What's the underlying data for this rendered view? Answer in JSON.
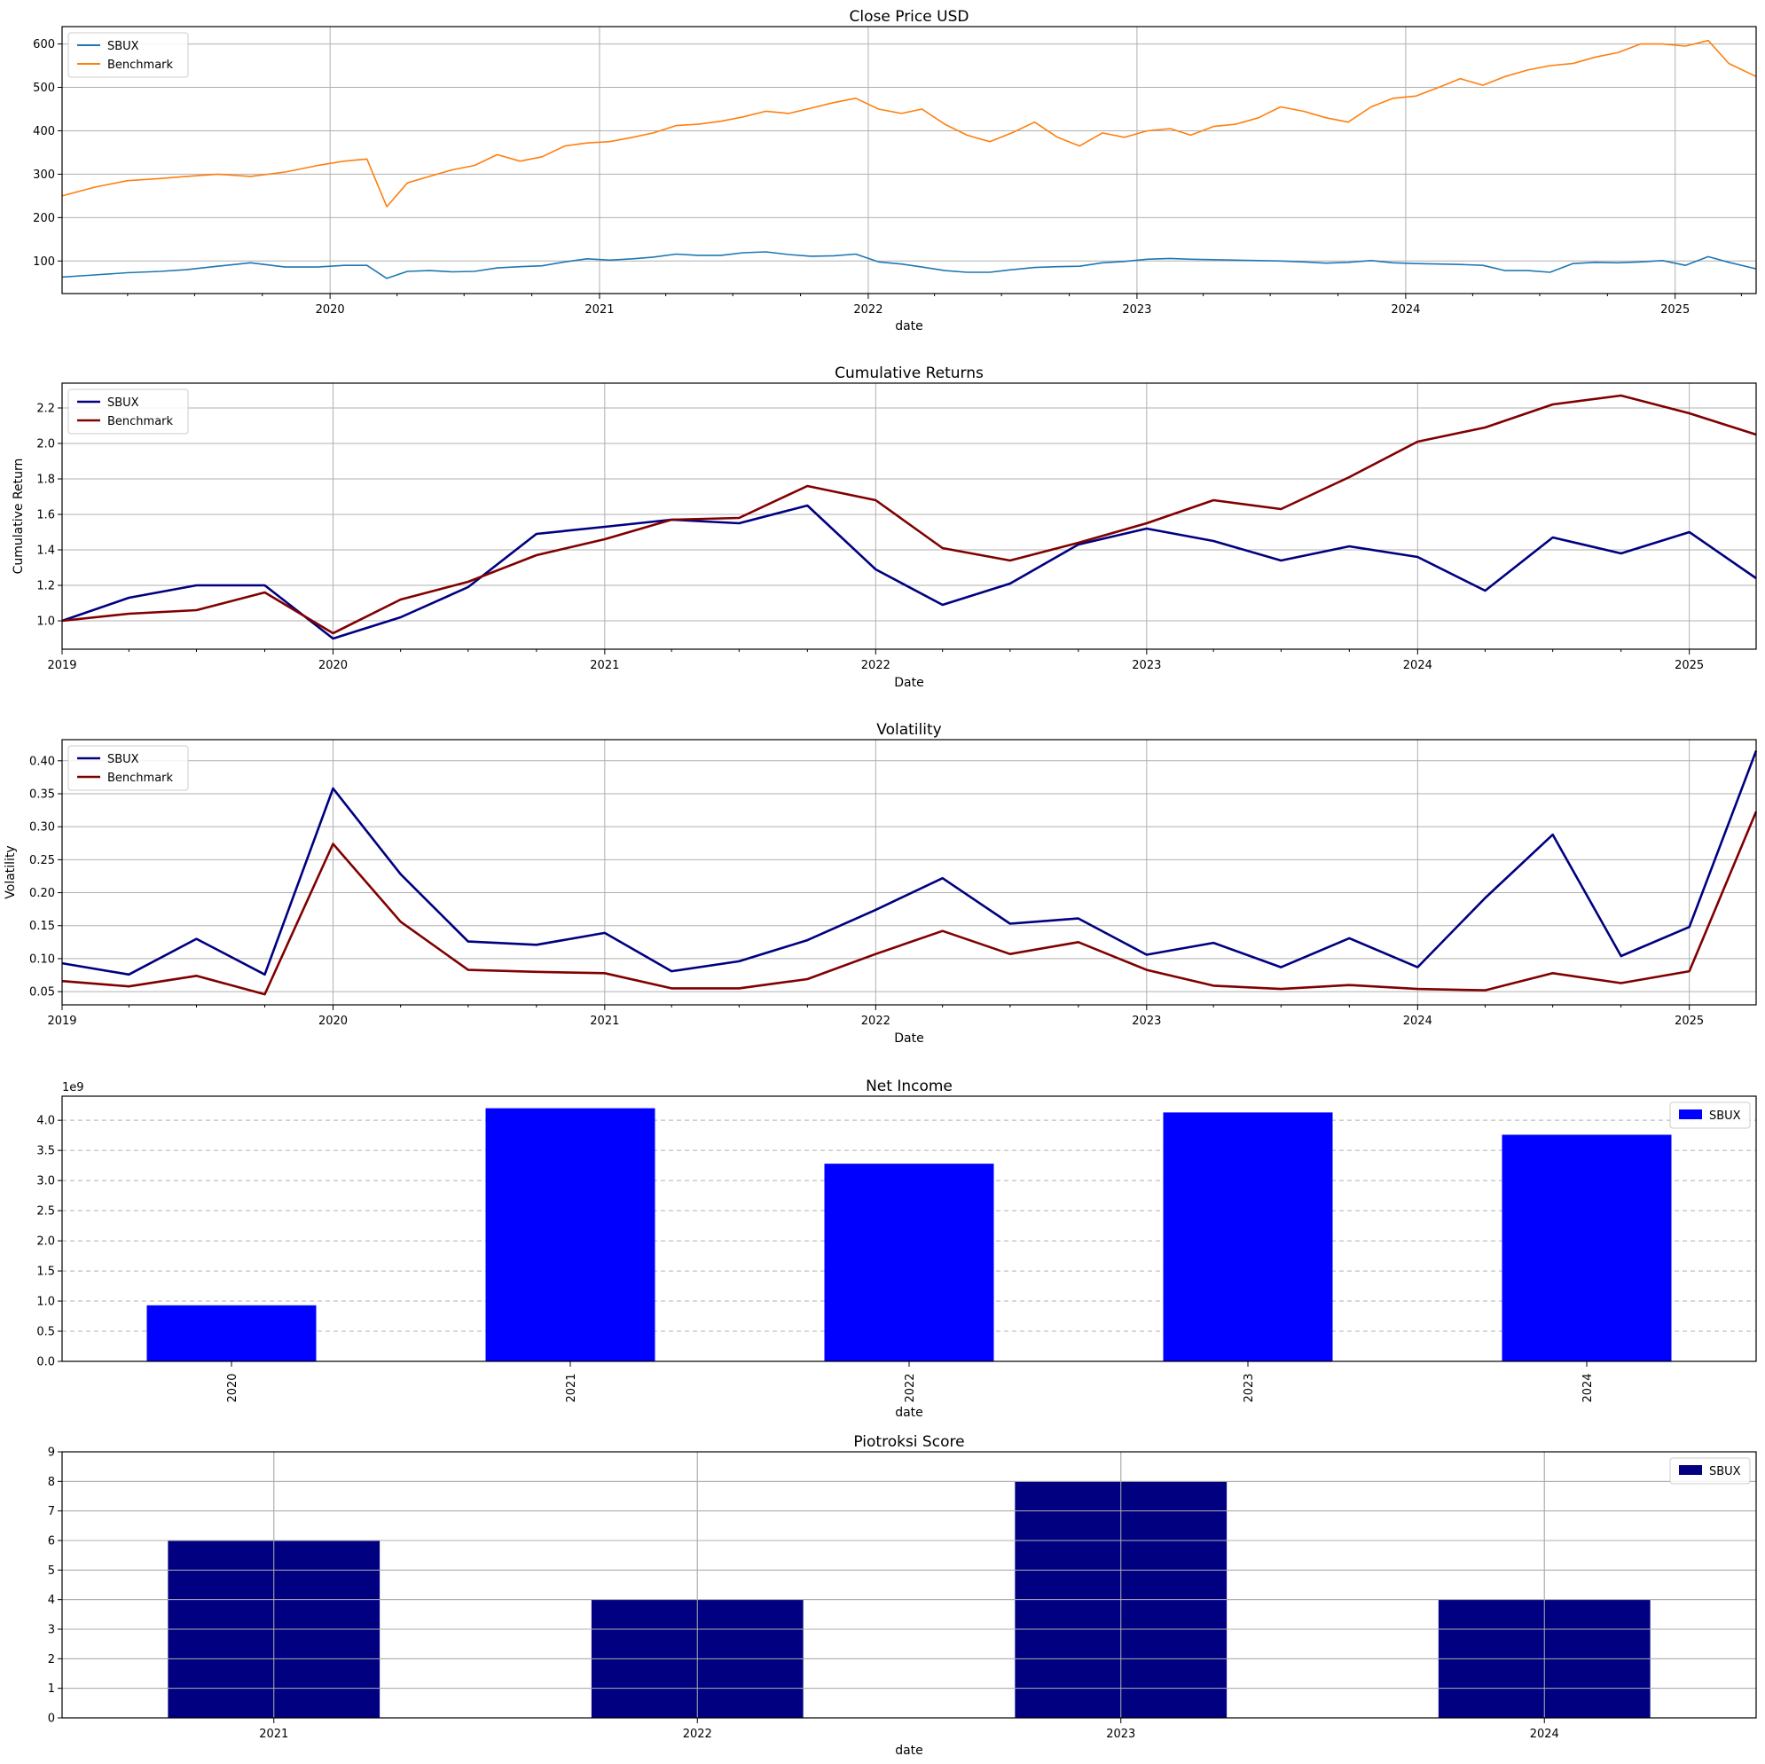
{
  "chart_data": [
    {
      "type": "line",
      "title": "Close Price USD",
      "xlabel": "date",
      "ylabel": "",
      "xlim": [
        "2019-01-02",
        "2025-04-21"
      ],
      "ylim": [
        25,
        640
      ],
      "xticks": [
        "2020",
        "2021",
        "2022",
        "2023",
        "2024",
        "2025"
      ],
      "yticks": [
        "100",
        "200",
        "300",
        "400",
        "500",
        "600"
      ],
      "grid": "both",
      "legend": "top-left",
      "series": [
        {
          "name": "SBUX",
          "color": "#1f77b4",
          "x": [
            "2019-01-02",
            "2019-02-15",
            "2019-04-01",
            "2019-05-15",
            "2019-06-20",
            "2019-08-01",
            "2019-09-15",
            "2019-11-01",
            "2019-12-15",
            "2020-01-20",
            "2020-02-20",
            "2020-03-18",
            "2020-04-15",
            "2020-05-15",
            "2020-06-15",
            "2020-07-15",
            "2020-08-15",
            "2020-09-15",
            "2020-10-15",
            "2020-11-15",
            "2020-12-15",
            "2021-01-15",
            "2021-02-15",
            "2021-03-15",
            "2021-04-15",
            "2021-05-15",
            "2021-06-15",
            "2021-07-15",
            "2021-08-15",
            "2021-09-15",
            "2021-10-15",
            "2021-11-15",
            "2021-12-15",
            "2022-01-15",
            "2022-02-15",
            "2022-03-15",
            "2022-04-15",
            "2022-05-15",
            "2022-06-15",
            "2022-07-15",
            "2022-08-15",
            "2022-09-15",
            "2022-10-15",
            "2022-11-15",
            "2022-12-15",
            "2023-01-15",
            "2023-02-15",
            "2023-03-15",
            "2023-04-15",
            "2023-05-15",
            "2023-06-15",
            "2023-07-15",
            "2023-08-15",
            "2023-09-15",
            "2023-10-15",
            "2023-11-15",
            "2023-12-15",
            "2024-01-15",
            "2024-02-15",
            "2024-03-15",
            "2024-04-15",
            "2024-05-15",
            "2024-06-15",
            "2024-07-15",
            "2024-08-15",
            "2024-09-15",
            "2024-10-15",
            "2024-11-15",
            "2024-12-15",
            "2025-01-15",
            "2025-02-15",
            "2025-03-15",
            "2025-04-21"
          ],
          "y": [
            63,
            68,
            73,
            76,
            80,
            88,
            96,
            86,
            86,
            90,
            90,
            60,
            76,
            78,
            75,
            76,
            84,
            87,
            89,
            98,
            105,
            102,
            105,
            109,
            116,
            113,
            113,
            119,
            121,
            115,
            111,
            112,
            116,
            98,
            93,
            86,
            78,
            74,
            74,
            80,
            85,
            87,
            88,
            96,
            99,
            104,
            106,
            104,
            103,
            102,
            101,
            100,
            98,
            95,
            97,
            101,
            96,
            94,
            93,
            92,
            90,
            78,
            78,
            74,
            94,
            97,
            96,
            98,
            101,
            90,
            110,
            97,
            82
          ]
        },
        {
          "name": "Benchmark",
          "color": "#ff7f0e",
          "x": [
            "2019-01-02",
            "2019-02-15",
            "2019-04-01",
            "2019-05-15",
            "2019-06-20",
            "2019-08-01",
            "2019-09-15",
            "2019-11-01",
            "2019-12-15",
            "2020-01-20",
            "2020-02-20",
            "2020-03-18",
            "2020-04-15",
            "2020-05-15",
            "2020-06-15",
            "2020-07-15",
            "2020-08-15",
            "2020-09-15",
            "2020-10-15",
            "2020-11-15",
            "2020-12-15",
            "2021-01-15",
            "2021-02-15",
            "2021-03-15",
            "2021-04-15",
            "2021-05-15",
            "2021-06-15",
            "2021-07-15",
            "2021-08-15",
            "2021-09-15",
            "2021-10-15",
            "2021-11-15",
            "2021-12-15",
            "2022-01-15",
            "2022-02-15",
            "2022-03-15",
            "2022-04-15",
            "2022-05-15",
            "2022-06-15",
            "2022-07-15",
            "2022-08-15",
            "2022-09-15",
            "2022-10-15",
            "2022-11-15",
            "2022-12-15",
            "2023-01-15",
            "2023-02-15",
            "2023-03-15",
            "2023-04-15",
            "2023-05-15",
            "2023-06-15",
            "2023-07-15",
            "2023-08-15",
            "2023-09-15",
            "2023-10-15",
            "2023-11-15",
            "2023-12-15",
            "2024-01-15",
            "2024-02-15",
            "2024-03-15",
            "2024-04-15",
            "2024-05-15",
            "2024-06-15",
            "2024-07-15",
            "2024-08-15",
            "2024-09-15",
            "2024-10-15",
            "2024-11-15",
            "2024-12-15",
            "2025-01-15",
            "2025-02-15",
            "2025-03-15",
            "2025-04-21"
          ],
          "y": [
            250,
            270,
            285,
            290,
            295,
            300,
            295,
            305,
            320,
            330,
            335,
            225,
            280,
            295,
            310,
            320,
            345,
            330,
            340,
            365,
            372,
            375,
            385,
            395,
            412,
            415,
            422,
            432,
            445,
            440,
            452,
            465,
            475,
            450,
            440,
            450,
            415,
            390,
            375,
            395,
            420,
            385,
            365,
            395,
            385,
            400,
            405,
            390,
            410,
            415,
            430,
            455,
            445,
            430,
            420,
            455,
            475,
            480,
            500,
            520,
            505,
            525,
            540,
            550,
            555,
            570,
            580,
            600,
            600,
            595,
            608,
            555,
            525
          ]
        }
      ]
    },
    {
      "type": "line",
      "title": "Cumulative Returns",
      "xlabel": "Date",
      "ylabel": "Cumulative Return",
      "xlim": [
        "2019-01-01",
        "2025-04-01"
      ],
      "ylim": [
        0.84,
        2.34
      ],
      "xticks": [
        "2019",
        "2020",
        "2021",
        "2022",
        "2023",
        "2024",
        "2025"
      ],
      "yticks": [
        "1.0",
        "1.2",
        "1.4",
        "1.6",
        "1.8",
        "2.0",
        "2.2"
      ],
      "grid": "both",
      "legend": "top-left",
      "series": [
        {
          "name": "SBUX",
          "color": "#000080",
          "x": [
            "2019-01-01",
            "2019-04-01",
            "2019-07-01",
            "2019-10-01",
            "2020-01-01",
            "2020-04-01",
            "2020-07-01",
            "2020-10-01",
            "2021-01-01",
            "2021-04-01",
            "2021-07-01",
            "2021-10-01",
            "2022-01-01",
            "2022-04-01",
            "2022-07-01",
            "2022-10-01",
            "2023-01-01",
            "2023-04-01",
            "2023-07-01",
            "2023-10-01",
            "2024-01-01",
            "2024-04-01",
            "2024-07-01",
            "2024-10-01",
            "2025-01-01",
            "2025-04-01"
          ],
          "y": [
            1.0,
            1.13,
            1.2,
            1.2,
            0.9,
            1.02,
            1.19,
            1.49,
            1.53,
            1.57,
            1.55,
            1.65,
            1.29,
            1.09,
            1.21,
            1.43,
            1.52,
            1.45,
            1.34,
            1.42,
            1.36,
            1.17,
            1.47,
            1.38,
            1.5,
            1.24
          ]
        },
        {
          "name": "Benchmark",
          "color": "#800000",
          "x": [
            "2019-01-01",
            "2019-04-01",
            "2019-07-01",
            "2019-10-01",
            "2020-01-01",
            "2020-04-01",
            "2020-07-01",
            "2020-10-01",
            "2021-01-01",
            "2021-04-01",
            "2021-07-01",
            "2021-10-01",
            "2022-01-01",
            "2022-04-01",
            "2022-07-01",
            "2022-10-01",
            "2023-01-01",
            "2023-04-01",
            "2023-07-01",
            "2023-10-01",
            "2024-01-01",
            "2024-04-01",
            "2024-07-01",
            "2024-10-01",
            "2025-01-01",
            "2025-04-01"
          ],
          "y": [
            1.0,
            1.04,
            1.06,
            1.16,
            0.93,
            1.12,
            1.22,
            1.37,
            1.46,
            1.57,
            1.58,
            1.76,
            1.68,
            1.41,
            1.34,
            1.44,
            1.55,
            1.68,
            1.63,
            1.81,
            2.01,
            2.09,
            2.22,
            2.27,
            2.17,
            2.05
          ]
        }
      ]
    },
    {
      "type": "line",
      "title": "Volatility",
      "xlabel": "Date",
      "ylabel": "Volatility",
      "xlim": [
        "2019-01-01",
        "2025-04-01"
      ],
      "ylim": [
        0.03,
        0.432
      ],
      "xticks": [
        "2019",
        "2020",
        "2021",
        "2022",
        "2023",
        "2024",
        "2025"
      ],
      "yticks": [
        "0.05",
        "0.10",
        "0.15",
        "0.20",
        "0.25",
        "0.30",
        "0.35",
        "0.40"
      ],
      "grid": "both",
      "legend": "top-left",
      "series": [
        {
          "name": "SBUX",
          "color": "#000080",
          "x": [
            "2019-01-01",
            "2019-04-01",
            "2019-07-01",
            "2019-10-01",
            "2020-01-01",
            "2020-04-01",
            "2020-07-01",
            "2020-10-01",
            "2021-01-01",
            "2021-04-01",
            "2021-07-01",
            "2021-10-01",
            "2022-01-01",
            "2022-04-01",
            "2022-07-01",
            "2022-10-01",
            "2023-01-01",
            "2023-04-01",
            "2023-07-01",
            "2023-10-01",
            "2024-01-01",
            "2024-04-01",
            "2024-07-01",
            "2024-10-01",
            "2025-01-01",
            "2025-04-01"
          ],
          "y": [
            0.093,
            0.076,
            0.13,
            0.076,
            0.358,
            0.228,
            0.126,
            0.121,
            0.139,
            0.081,
            0.096,
            0.128,
            0.174,
            0.222,
            0.153,
            0.161,
            0.106,
            0.124,
            0.087,
            0.131,
            0.087,
            0.192,
            0.288,
            0.104,
            0.148,
            0.415
          ]
        },
        {
          "name": "Benchmark",
          "color": "#800000",
          "x": [
            "2019-01-01",
            "2019-04-01",
            "2019-07-01",
            "2019-10-01",
            "2020-01-01",
            "2020-04-01",
            "2020-07-01",
            "2020-10-01",
            "2021-01-01",
            "2021-04-01",
            "2021-07-01",
            "2021-10-01",
            "2022-01-01",
            "2022-04-01",
            "2022-07-01",
            "2022-10-01",
            "2023-01-01",
            "2023-04-01",
            "2023-07-01",
            "2023-10-01",
            "2024-01-01",
            "2024-04-01",
            "2024-07-01",
            "2024-10-01",
            "2025-01-01",
            "2025-04-01"
          ],
          "y": [
            0.066,
            0.058,
            0.074,
            0.046,
            0.274,
            0.156,
            0.083,
            0.08,
            0.078,
            0.055,
            0.055,
            0.069,
            0.107,
            0.142,
            0.107,
            0.125,
            0.083,
            0.059,
            0.054,
            0.06,
            0.054,
            0.052,
            0.078,
            0.063,
            0.081,
            0.323
          ]
        }
      ]
    },
    {
      "type": "bar",
      "title": "Net Income",
      "xlabel": "date",
      "ylabel": "",
      "offset_label": "1e9",
      "categories": [
        "2020",
        "2021",
        "2022",
        "2023",
        "2024"
      ],
      "ylim": [
        0,
        4.4
      ],
      "yticks": [
        "0.0",
        "0.5",
        "1.0",
        "1.5",
        "2.0",
        "2.5",
        "3.0",
        "3.5",
        "4.0"
      ],
      "grid": "y-dashed",
      "legend": "top-right",
      "series": [
        {
          "name": "SBUX",
          "color": "#0000ff",
          "values": [
            0.93,
            4.2,
            3.28,
            4.13,
            3.76
          ]
        }
      ]
    },
    {
      "type": "bar",
      "title": "Piotroksi Score",
      "xlabel": "date",
      "ylabel": "",
      "categories": [
        "2021",
        "2022",
        "2023",
        "2024"
      ],
      "ylim": [
        0,
        9
      ],
      "yticks": [
        "0",
        "1",
        "2",
        "3",
        "4",
        "5",
        "6",
        "7",
        "8",
        "9"
      ],
      "grid": "both",
      "legend": "top-right",
      "series": [
        {
          "name": "SBUX",
          "color": "#000080",
          "values": [
            6,
            4,
            8,
            4
          ]
        }
      ]
    }
  ]
}
